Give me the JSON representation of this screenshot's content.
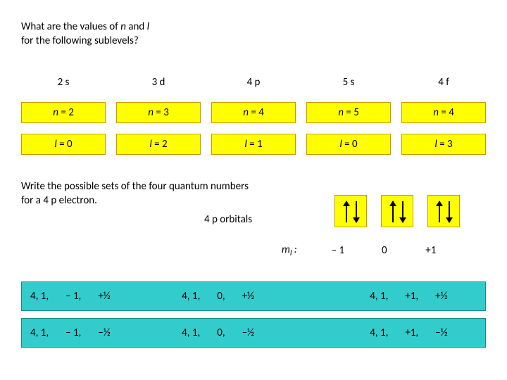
{
  "q1": {
    "line1_a": "What are the values of ",
    "line1_n": "n",
    "line1_b": " and ",
    "line1_l": "l",
    "line2": "for the following sublevels?"
  },
  "sublevels": {
    "labels": [
      "2 s",
      "3 d",
      "4 p",
      "5 s",
      "4 f"
    ],
    "n_prefix": "n",
    "n_eq": " = ",
    "n_vals": [
      "2",
      "3",
      "4",
      "5",
      "4"
    ],
    "l_prefix": "l",
    "l_eq": " = ",
    "l_vals": [
      "0",
      "2",
      "1",
      "0",
      "3"
    ]
  },
  "q2": {
    "line1": "Write the possible sets of the four quantum numbers",
    "line2": "for a 4 p electron."
  },
  "orbitals_label": "4 p orbitals",
  "ml": {
    "sym": "m",
    "sub": "l",
    "colon": " :",
    "vals": [
      "– 1",
      "0",
      "+1"
    ]
  },
  "sets": {
    "rows": [
      {
        "groups": [
          {
            "tokens": [
              "4,  1,",
              "– 1,",
              "+½"
            ]
          },
          {
            "tokens": [
              "4,  1,",
              "0,",
              "+½"
            ]
          },
          {
            "tokens": [
              "4,  1,",
              "+1,",
              "+½"
            ]
          }
        ]
      },
      {
        "groups": [
          {
            "tokens": [
              "4,  1,",
              "– 1,",
              "–½"
            ]
          },
          {
            "tokens": [
              "4,  1,",
              "0,",
              "–½"
            ]
          },
          {
            "tokens": [
              "4,  1,",
              "+1,",
              "–½"
            ]
          }
        ]
      }
    ]
  },
  "style": {
    "bg": "#ffffff",
    "yellow_fill": "#ffff00",
    "yellow_border": "#cc9900",
    "cyan_fill": "#33cccc",
    "cyan_border": "#1a8a8a",
    "text_color": "#000000",
    "font_family": "Calibri, Arial, sans-serif",
    "font_size_pt": 11
  }
}
